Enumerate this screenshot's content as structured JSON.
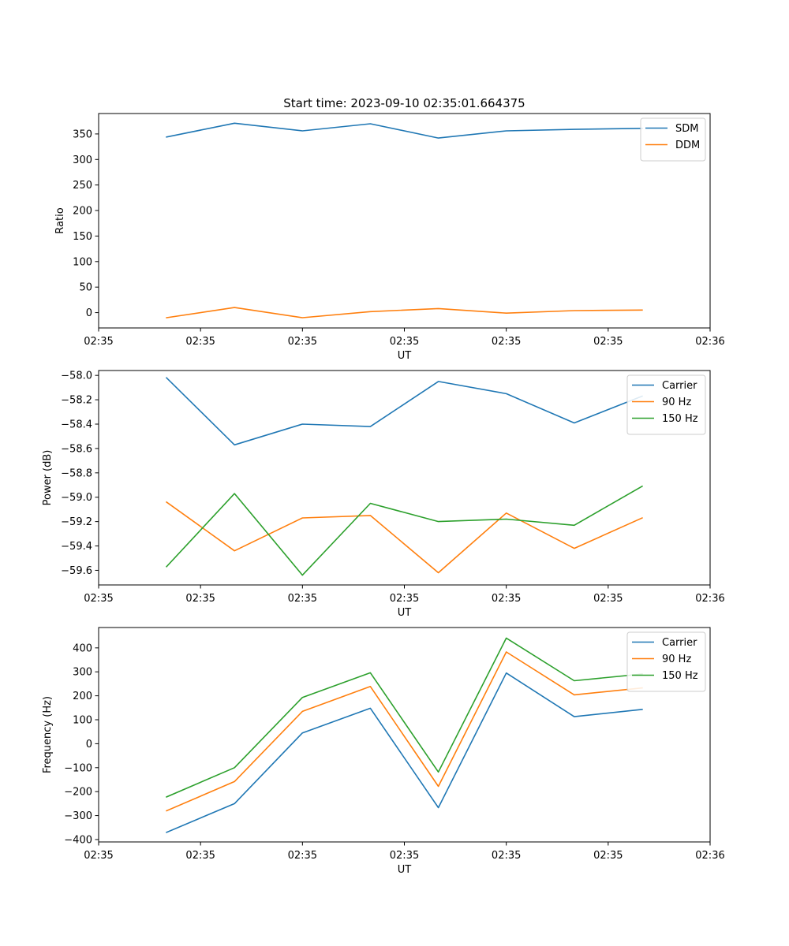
{
  "figure": {
    "title": "Start time: 2023-09-10 02:35:01.664375"
  },
  "chart_data": [
    {
      "type": "line",
      "xlabel": "UT",
      "ylabel": "Ratio",
      "xlim": [
        0,
        9
      ],
      "ylim": [
        -30,
        390
      ],
      "x": [
        1,
        2,
        3,
        4,
        5,
        6,
        7,
        8
      ],
      "xticks": [
        0,
        1.5,
        3,
        4.5,
        6,
        7.5,
        9
      ],
      "xtick_labels": [
        "02:35",
        "02:35",
        "02:35",
        "02:35",
        "02:35",
        "02:35",
        "02:36"
      ],
      "yticks": [
        0,
        50,
        100,
        150,
        200,
        250,
        300,
        350
      ],
      "ytick_labels": [
        "0",
        "50",
        "100",
        "150",
        "200",
        "250",
        "300",
        "350"
      ],
      "legend_position": "top-right",
      "series": [
        {
          "name": "SDM",
          "color": "#1f77b4",
          "values": [
            344,
            371,
            356,
            370,
            342,
            356,
            359,
            361
          ]
        },
        {
          "name": "DDM",
          "color": "#ff7f0e",
          "values": [
            -10,
            10,
            -10,
            2,
            8,
            -1,
            4,
            5
          ]
        }
      ]
    },
    {
      "type": "line",
      "xlabel": "UT",
      "ylabel": "Power (dB)",
      "xlim": [
        0,
        9
      ],
      "ylim": [
        -59.72,
        -57.96
      ],
      "x": [
        1,
        2,
        3,
        4,
        5,
        6,
        7,
        8
      ],
      "xticks": [
        0,
        1.5,
        3,
        4.5,
        6,
        7.5,
        9
      ],
      "xtick_labels": [
        "02:35",
        "02:35",
        "02:35",
        "02:35",
        "02:35",
        "02:35",
        "02:36"
      ],
      "yticks": [
        -58.0,
        -58.2,
        -58.4,
        -58.6,
        -58.8,
        -59.0,
        -59.2,
        -59.4,
        -59.6
      ],
      "ytick_labels": [
        "−58.0",
        "−58.2",
        "−58.4",
        "−58.6",
        "−58.8",
        "−59.0",
        "−59.2",
        "−59.4",
        "−59.6"
      ],
      "legend_position": "top-right",
      "series": [
        {
          "name": "Carrier",
          "color": "#1f77b4",
          "values": [
            -58.02,
            -58.57,
            -58.4,
            -58.42,
            -58.05,
            -58.15,
            -58.39,
            -58.17
          ]
        },
        {
          "name": "90 Hz",
          "color": "#ff7f0e",
          "values": [
            -59.04,
            -59.44,
            -59.17,
            -59.15,
            -59.62,
            -59.13,
            -59.42,
            -59.17
          ]
        },
        {
          "name": "150 Hz",
          "color": "#2ca02c",
          "values": [
            -59.57,
            -58.97,
            -59.64,
            -59.05,
            -59.2,
            -59.18,
            -59.23,
            -58.91
          ]
        }
      ]
    },
    {
      "type": "line",
      "xlabel": "UT",
      "ylabel": "Frequency (Hz)",
      "xlim": [
        0,
        9
      ],
      "ylim": [
        -410,
        485
      ],
      "x": [
        1,
        2,
        3,
        4,
        5,
        6,
        7,
        8
      ],
      "xticks": [
        0,
        1.5,
        3,
        4.5,
        6,
        7.5,
        9
      ],
      "xtick_labels": [
        "02:35",
        "02:35",
        "02:35",
        "02:35",
        "02:35",
        "02:35",
        "02:36"
      ],
      "yticks": [
        -400,
        -300,
        -200,
        -100,
        0,
        100,
        200,
        300,
        400
      ],
      "ytick_labels": [
        "−400",
        "−300",
        "−200",
        "−100",
        "0",
        "100",
        "200",
        "300",
        "400"
      ],
      "legend_position": "top-right",
      "series": [
        {
          "name": "Carrier",
          "color": "#1f77b4",
          "values": [
            -370,
            -250,
            45,
            148,
            -267,
            295,
            113,
            143
          ]
        },
        {
          "name": "90 Hz",
          "color": "#ff7f0e",
          "values": [
            -280,
            -158,
            135,
            239,
            -178,
            383,
            204,
            233
          ]
        },
        {
          "name": "150 Hz",
          "color": "#2ca02c",
          "values": [
            -222,
            -100,
            193,
            296,
            -118,
            441,
            263,
            291
          ]
        }
      ]
    }
  ]
}
